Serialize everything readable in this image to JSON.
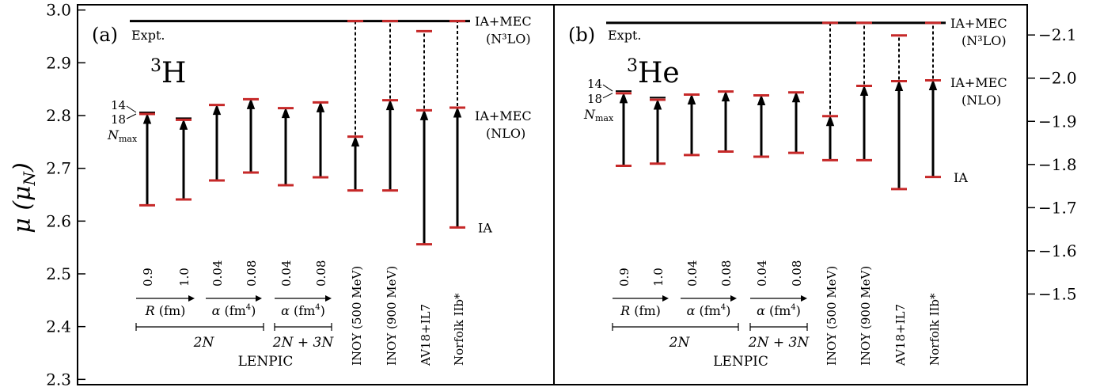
{
  "chart_data": [
    {
      "type": "range-bars",
      "panel_label": "(a)",
      "nucleus": "3H",
      "nucleus_mass": "3",
      "nucleus_symbol": "H",
      "ylabel_left": "μ (μN)",
      "ylim": [
        2.29,
        3.01
      ],
      "yticks": [
        "2.3",
        "2.4",
        "2.5",
        "2.6",
        "2.7",
        "2.8",
        "2.9",
        "3.0"
      ],
      "expt": {
        "label": "Expt.",
        "value": 2.979
      },
      "level_labels": [
        {
          "text": "IA+MEC",
          "sub": "(N³LO)",
          "value": 2.979
        },
        {
          "text": "IA+MEC",
          "sub": "(NLO)",
          "value": 2.8
        },
        {
          "text": "IA",
          "sub": "",
          "value": 2.588
        }
      ],
      "nmax_labels": {
        "n14": "14",
        "n18": "18",
        "nmax": "N",
        "nmax_sub": "max"
      },
      "x_values": [
        "0.9",
        "1.0",
        "0.04",
        "0.08",
        "0.04",
        "0.08",
        "INOY (500 MeV)",
        "INOY (900 MeV)",
        "AV18+IL7",
        "Norfolk IIb*"
      ],
      "bars": [
        {
          "x": "0.9",
          "ia": 2.63,
          "nlo": 2.803,
          "extra": 2.806
        },
        {
          "x": "1.0",
          "ia": 2.641,
          "nlo": 2.792,
          "extra": 2.795
        },
        {
          "x": "0.04",
          "ia": 2.677,
          "nlo": 2.82
        },
        {
          "x": "0.08",
          "ia": 2.692,
          "nlo": 2.831
        },
        {
          "x": "0.04",
          "ia": 2.668,
          "nlo": 2.814
        },
        {
          "x": "0.08",
          "ia": 2.683,
          "nlo": 2.825
        },
        {
          "x": "INOY (500 MeV)",
          "ia": 2.658,
          "nlo": 2.76,
          "n3lo": 2.979
        },
        {
          "x": "INOY (900 MeV)",
          "ia": 2.658,
          "nlo": 2.829,
          "n3lo": 2.979
        },
        {
          "x": "AV18+IL7",
          "ia": 2.556,
          "nlo": 2.81,
          "n3lo": 2.96
        },
        {
          "x": "Norfolk IIb*",
          "ia": 2.588,
          "nlo": 2.815,
          "n3lo": 2.979
        }
      ],
      "group_labels": {
        "r_axis": "R (fm)",
        "alpha_axis": "α (fm⁴)",
        "two_n": "2N",
        "two_n_three_n": "2N + 3N",
        "lenpic": "LENPIC"
      }
    },
    {
      "type": "range-bars",
      "panel_label": "(b)",
      "nucleus": "3He",
      "nucleus_mass": "3",
      "nucleus_symbol": "He",
      "ylim": [
        -1.29,
        -2.17
      ],
      "yticks_right": [
        "-2.1",
        "-2.0",
        "-1.9",
        "-1.8",
        "-1.7",
        "-1.6",
        "-1.5"
      ],
      "expt": {
        "label": "Expt.",
        "value": -2.128
      },
      "level_labels": [
        {
          "text": "IA+MEC",
          "sub": "(N³LO)",
          "value": -2.128
        },
        {
          "text": "IA+MEC",
          "sub": "(NLO)",
          "value": -1.99
        },
        {
          "text": "IA",
          "sub": "",
          "value": -1.77
        }
      ],
      "nmax_labels": {
        "n14": "14",
        "n18": "18",
        "nmax": "N",
        "nmax_sub": "max"
      },
      "bars": [
        {
          "x": "0.9",
          "ia": -1.797,
          "nlo": -1.965,
          "extra": -1.97
        },
        {
          "x": "1.0",
          "ia": -1.802,
          "nlo": -1.95,
          "extra": -1.955
        },
        {
          "x": "0.04",
          "ia": -1.822,
          "nlo": -1.962
        },
        {
          "x": "0.08",
          "ia": -1.83,
          "nlo": -1.969
        },
        {
          "x": "0.04",
          "ia": -1.818,
          "nlo": -1.96
        },
        {
          "x": "0.08",
          "ia": -1.827,
          "nlo": -1.967
        },
        {
          "x": "INOY (500 MeV)",
          "ia": -1.81,
          "nlo": -1.912,
          "n3lo": -2.128
        },
        {
          "x": "INOY (900 MeV)",
          "ia": -1.81,
          "nlo": -1.982,
          "n3lo": -2.128
        },
        {
          "x": "AV18+IL7",
          "ia": -1.743,
          "nlo": -1.993,
          "n3lo": -2.099
        },
        {
          "x": "Norfolk IIb*",
          "ia": -1.771,
          "nlo": -1.995,
          "n3lo": -2.128
        }
      ],
      "group_labels": {
        "r_axis": "R (fm)",
        "alpha_axis": "α (fm⁴)",
        "two_n": "2N",
        "two_n_three_n": "2N + 3N",
        "lenpic": "LENPIC"
      }
    }
  ],
  "colors": {
    "cap": "#c62828",
    "line": "#000000",
    "background": "#ffffff"
  }
}
